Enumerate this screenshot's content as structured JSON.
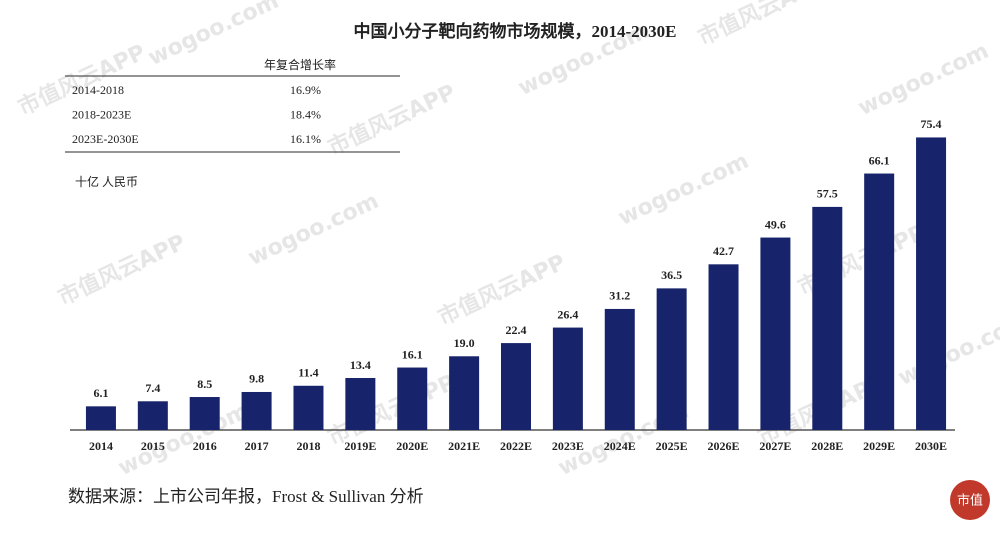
{
  "chart_data": {
    "type": "bar",
    "title": "中国小分子靶向药物市场规模，2014-2030E",
    "unit": "十亿 人民币",
    "categories": [
      "2014",
      "2015",
      "2016",
      "2017",
      "2018",
      "2019E",
      "2020E",
      "2021E",
      "2022E",
      "2023E",
      "2024E",
      "2025E",
      "2026E",
      "2027E",
      "2028E",
      "2029E",
      "2030E"
    ],
    "values": [
      6.1,
      7.4,
      8.5,
      9.8,
      11.4,
      13.4,
      16.1,
      19.0,
      22.4,
      26.4,
      31.2,
      36.5,
      42.7,
      49.6,
      57.5,
      66.1,
      75.4
    ],
    "value_labels": [
      "6.1",
      "7.4",
      "8.5",
      "9.8",
      "11.4",
      "13.4",
      "16.1",
      "19.0",
      "22.4",
      "26.4",
      "31.2",
      "36.5",
      "42.7",
      "49.6",
      "57.5",
      "66.1",
      "75.4"
    ],
    "color": "#17236a",
    "cagr_table": {
      "header": "年复合增长率",
      "rows": [
        [
          "2014-2018",
          "16.9%"
        ],
        [
          "2018-2023E",
          "18.4%"
        ],
        [
          "2023E-2030E",
          "16.1%"
        ]
      ]
    },
    "source": "数据来源：上市公司年报，Frost & Sullivan 分析",
    "watermark": [
      "市值风云APP",
      "wogoo.com"
    ],
    "logo": "市值"
  }
}
